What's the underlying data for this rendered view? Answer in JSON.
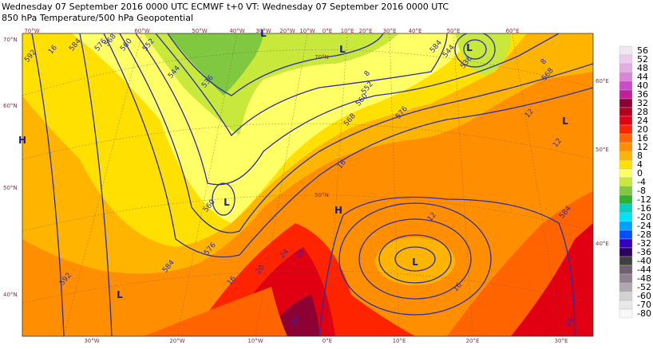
{
  "header": {
    "line1": "Wednesday 07 September 2016 0000 UTC  ECMWF  t+0  VT: Wednesday 07 September 2016 0000 UTC",
    "line2": "850 hPa Temperature/500 hPa Geopotential"
  },
  "legend": [
    {
      "value": 56,
      "color": "#f3e6f3"
    },
    {
      "value": 52,
      "color": "#ebcdeb"
    },
    {
      "value": 48,
      "color": "#e2aee2"
    },
    {
      "value": 44,
      "color": "#d986d9"
    },
    {
      "value": 40,
      "color": "#cc4acc"
    },
    {
      "value": 36,
      "color": "#c0209a"
    },
    {
      "value": 32,
      "color": "#8c0033"
    },
    {
      "value": 28,
      "color": "#b40020"
    },
    {
      "value": 24,
      "color": "#e00012"
    },
    {
      "value": 20,
      "color": "#ff2400"
    },
    {
      "value": 16,
      "color": "#ff6400"
    },
    {
      "value": 12,
      "color": "#ff8f00"
    },
    {
      "value": 8,
      "color": "#ffb400"
    },
    {
      "value": 4,
      "color": "#ffe000"
    },
    {
      "value": 0,
      "color": "#ffff66"
    },
    {
      "value": -4,
      "color": "#c8e83c"
    },
    {
      "value": -8,
      "color": "#80c840"
    },
    {
      "value": -12,
      "color": "#2fb030"
    },
    {
      "value": -16,
      "color": "#00d0c0"
    },
    {
      "value": -20,
      "color": "#00e2ff"
    },
    {
      "value": -24,
      "color": "#00a0ff"
    },
    {
      "value": -28,
      "color": "#0050ff"
    },
    {
      "value": -32,
      "color": "#3400c0"
    },
    {
      "value": -36,
      "color": "#2e0060"
    },
    {
      "value": -40,
      "color": "#404040"
    },
    {
      "value": -44,
      "color": "#706070"
    },
    {
      "value": -48,
      "color": "#908090"
    },
    {
      "value": -52,
      "color": "#b0a8b0"
    },
    {
      "value": -60,
      "color": "#d2d2d2"
    },
    {
      "value": -70,
      "color": "#e8e8e8"
    },
    {
      "value": -80,
      "color": "#f8f8f8"
    }
  ],
  "geo_labels": {
    "top": [
      "70°W",
      "60°W",
      "50°W",
      "40°W",
      "30°W",
      "20°W",
      "10°W",
      "0°E",
      "10°E",
      "20°E",
      "30°E",
      "40°E",
      "50°E",
      "60°E"
    ],
    "bottom": [
      "30°W",
      "20°W",
      "10°W",
      "0°E",
      "10°E",
      "20°E",
      "30°E"
    ],
    "left": [
      "70°N",
      "60°N",
      "50°N",
      "40°N"
    ],
    "right": [
      "60°E",
      "50°E",
      "40°E"
    ],
    "interior": [
      "70°N",
      "50°N"
    ]
  },
  "contour_labels": [
    592,
    16,
    584,
    576,
    568,
    560,
    552,
    544,
    536,
    552,
    560,
    568,
    576,
    584,
    544,
    536,
    568,
    8,
    12,
    12,
    560,
    576,
    584,
    16,
    20,
    24,
    28,
    16,
    12,
    16,
    8,
    584,
    592,
    20,
    28
  ],
  "centers": [
    "H",
    "L",
    "L",
    "H",
    "L",
    "L",
    "L",
    "L",
    "L"
  ]
}
